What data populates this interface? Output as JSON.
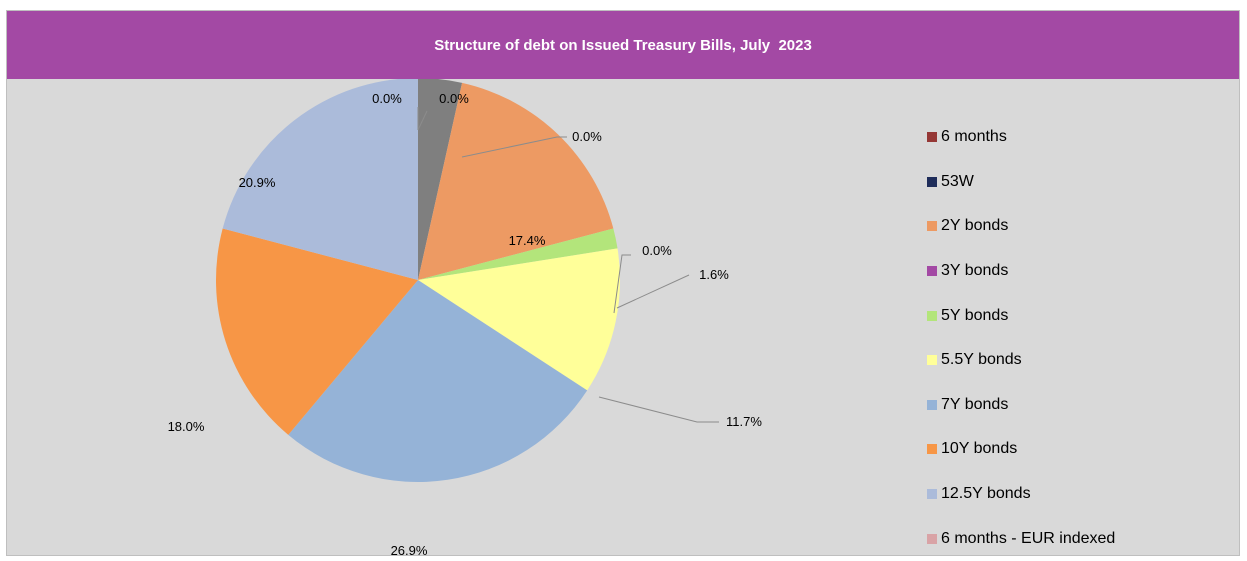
{
  "chart_data": {
    "type": "pie",
    "title": "Structure of debt on Issued Treasury Bills, July  2023",
    "legend_position": "right",
    "slices": [
      {
        "name": "",
        "value": 3.5,
        "color": "#7f7f7f",
        "label": ""
      },
      {
        "name": "6 months",
        "value": 0.0,
        "color": "#953735",
        "label": "0.0%"
      },
      {
        "name": "53W",
        "value": 0.0,
        "color": "#1f2d5a",
        "label": "0.0%"
      },
      {
        "name": "2Y bonds",
        "value": 17.4,
        "color": "#ed9a63",
        "label": "17.4%"
      },
      {
        "name": "3Y bonds",
        "value": 0.0,
        "color": "#a349a4",
        "label": "0.0%"
      },
      {
        "name": "5Y bonds",
        "value": 1.6,
        "color": "#b3e57b",
        "label": "1.6%"
      },
      {
        "name": "5.5Y bonds",
        "value": 11.7,
        "color": "#ffff99",
        "label": "11.7%"
      },
      {
        "name": "7Y bonds",
        "value": 26.9,
        "color": "#95b3d7",
        "label": "26.9%"
      },
      {
        "name": "10Y bonds",
        "value": 18.0,
        "color": "#f79646",
        "label": "18.0%"
      },
      {
        "name": "12.5Y bonds",
        "value": 20.9,
        "color": "#abbbda",
        "label": "20.9%"
      },
      {
        "name": "6 months - EUR indexed",
        "value": 0.0,
        "color": "#d9a3a6",
        "label": "0.0%"
      }
    ]
  }
}
